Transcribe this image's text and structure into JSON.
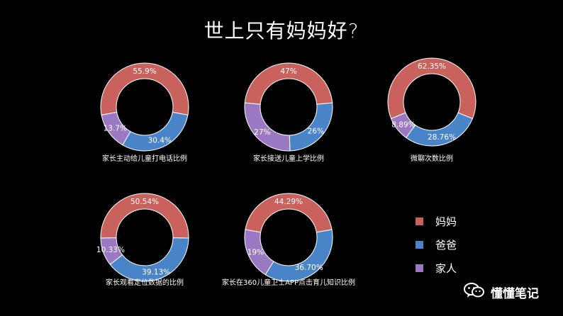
{
  "title": "世上只有妈妈好?",
  "colors": {
    "mom": "#c9625c",
    "dad": "#4a84c8",
    "family": "#9a79c2"
  },
  "legend": [
    "妈妈",
    "爸爸",
    "家人"
  ],
  "watermark": {
    "text": "懂懂笔记",
    "icon": "wechat-icon"
  },
  "chart_data": [
    {
      "type": "pie",
      "title": "家长主动给儿童打电话比例",
      "series": [
        "妈妈",
        "爸爸",
        "家人"
      ],
      "values": [
        55.9,
        30.4,
        13.7
      ],
      "labels": [
        "55.9%",
        "30.4%",
        "13.7%"
      ]
    },
    {
      "type": "pie",
      "title": "家长接送儿童上学比例",
      "series": [
        "妈妈",
        "爸爸",
        "家人"
      ],
      "values": [
        47,
        26,
        27
      ],
      "labels": [
        "47%",
        "26%",
        "27%"
      ]
    },
    {
      "type": "pie",
      "title": "微聊次数比例",
      "series": [
        "妈妈",
        "爸爸",
        "家人"
      ],
      "values": [
        62.35,
        28.76,
        8.89
      ],
      "labels": [
        "62.35%",
        "28.76%",
        "8.89%"
      ]
    },
    {
      "type": "pie",
      "title": "家长观看定位数据的比例",
      "series": [
        "妈妈",
        "爸爸",
        "家人"
      ],
      "values": [
        50.54,
        39.13,
        10.33
      ],
      "labels": [
        "50.54%",
        "39.13%",
        "10.33%"
      ]
    },
    {
      "type": "pie",
      "title": "家长在360儿童卫士APP点击育儿知识比例",
      "series": [
        "妈妈",
        "爸爸",
        "家人"
      ],
      "values": [
        44.29,
        36.7,
        19
      ],
      "labels": [
        "44.29%",
        "36.70%",
        "19%"
      ]
    }
  ]
}
